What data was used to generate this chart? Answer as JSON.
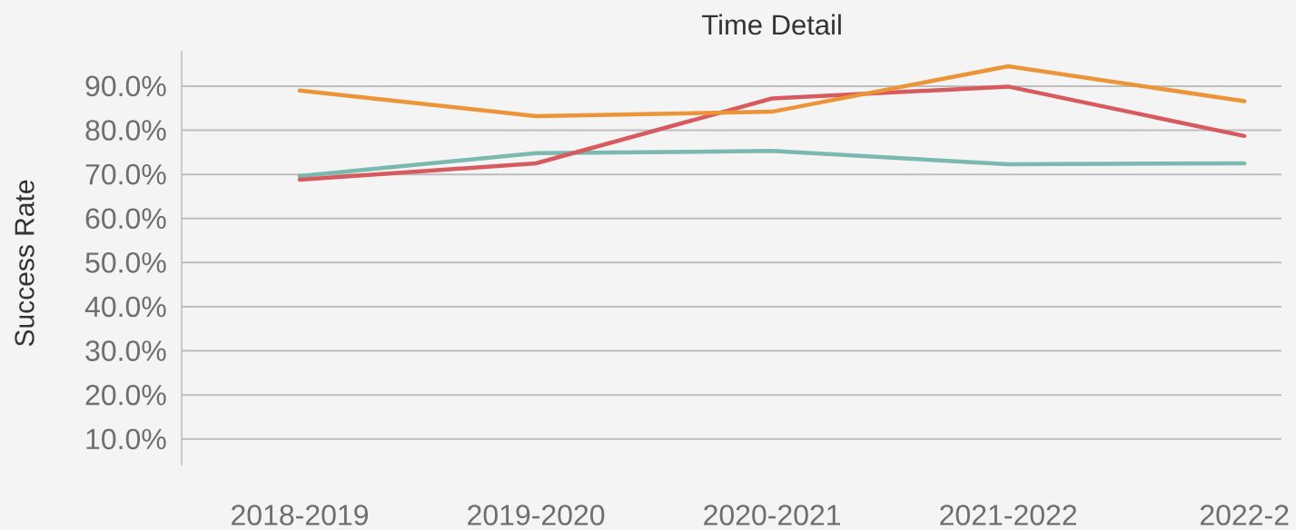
{
  "chart_data": {
    "type": "line",
    "title": "Time Detail",
    "ylabel": "Success Rate",
    "categories": [
      "2018-2019",
      "2019-2020",
      "2020-2021",
      "2021-2022",
      "2022-2"
    ],
    "series": [
      {
        "color": "#7ab8b0",
        "values": [
          69.6,
          74.8,
          75.3,
          72.3,
          72.5
        ]
      },
      {
        "color": "#d65a5e",
        "values": [
          68.8,
          72.5,
          87.2,
          89.9,
          78.7
        ]
      },
      {
        "color": "#eb9438",
        "values": [
          89.0,
          83.2,
          84.2,
          94.5,
          86.6
        ]
      }
    ],
    "ylim": [
      4,
      98
    ],
    "yticks": [
      {
        "value": 10,
        "label": "10.0%"
      },
      {
        "value": 20,
        "label": "20.0%"
      },
      {
        "value": 30,
        "label": "30.0%"
      },
      {
        "value": 40,
        "label": "40.0%"
      },
      {
        "value": 50,
        "label": "50.0%"
      },
      {
        "value": 60,
        "label": "60.0%"
      },
      {
        "value": 70,
        "label": "70.0%"
      },
      {
        "value": 80,
        "label": "80.0%"
      },
      {
        "value": 90,
        "label": "90.0%"
      }
    ],
    "grid": "y",
    "line_style": "solid"
  }
}
